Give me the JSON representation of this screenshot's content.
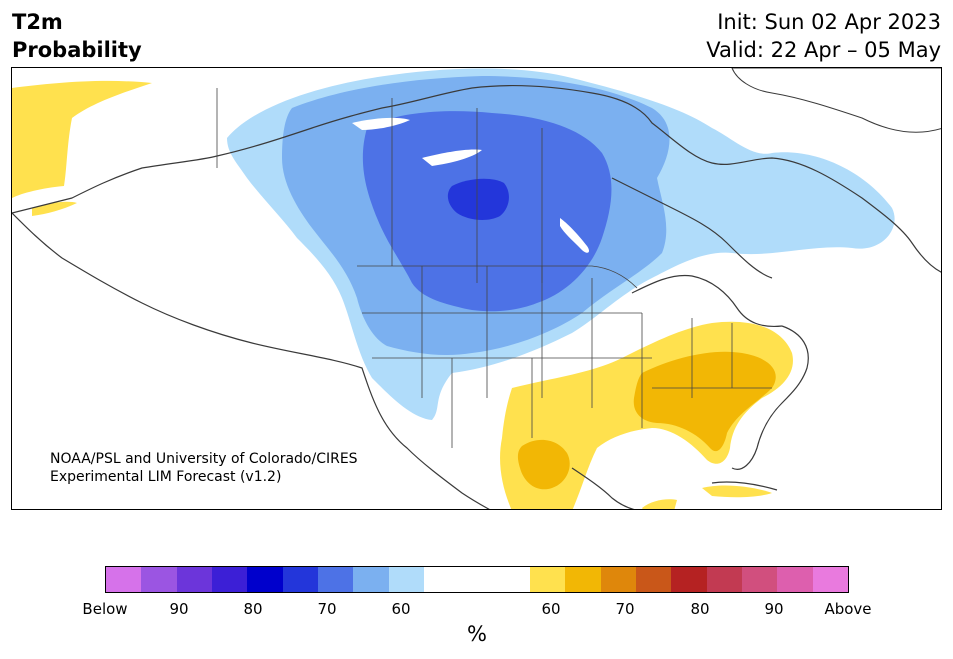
{
  "title": {
    "left_line1": "T2m",
    "left_line2": "Probability",
    "init": "Init: Sun 02 Apr 2023",
    "valid": "Valid: 22 Apr – 05 May"
  },
  "credit": {
    "line1": "NOAA/PSL and University of Colorado/CIRES",
    "line2": "Experimental LIM Forecast (v1.2)"
  },
  "colorbar": {
    "colors": [
      "#d672ea",
      "#9b55e2",
      "#6c35da",
      "#3c1fd6",
      "#0000cc",
      "#2336da",
      "#4d72e6",
      "#7bb0f0",
      "#b0dcfa",
      "#ffffff",
      "#ffffff",
      "#ffffff",
      "#ffe14e",
      "#f2b705",
      "#df870b",
      "#c95719",
      "#b52222",
      "#c23a52",
      "#d14f7e",
      "#dd5fae",
      "#e97ade"
    ],
    "labels": [
      "Below",
      "90",
      "80",
      "70",
      "60",
      "60",
      "70",
      "80",
      "90",
      "Above"
    ],
    "unit": "%"
  },
  "legend_categories": {
    "below": [
      "Below",
      "90",
      "80",
      "70",
      "60"
    ],
    "above": [
      "60",
      "70",
      "80",
      "90",
      "Above"
    ]
  }
}
